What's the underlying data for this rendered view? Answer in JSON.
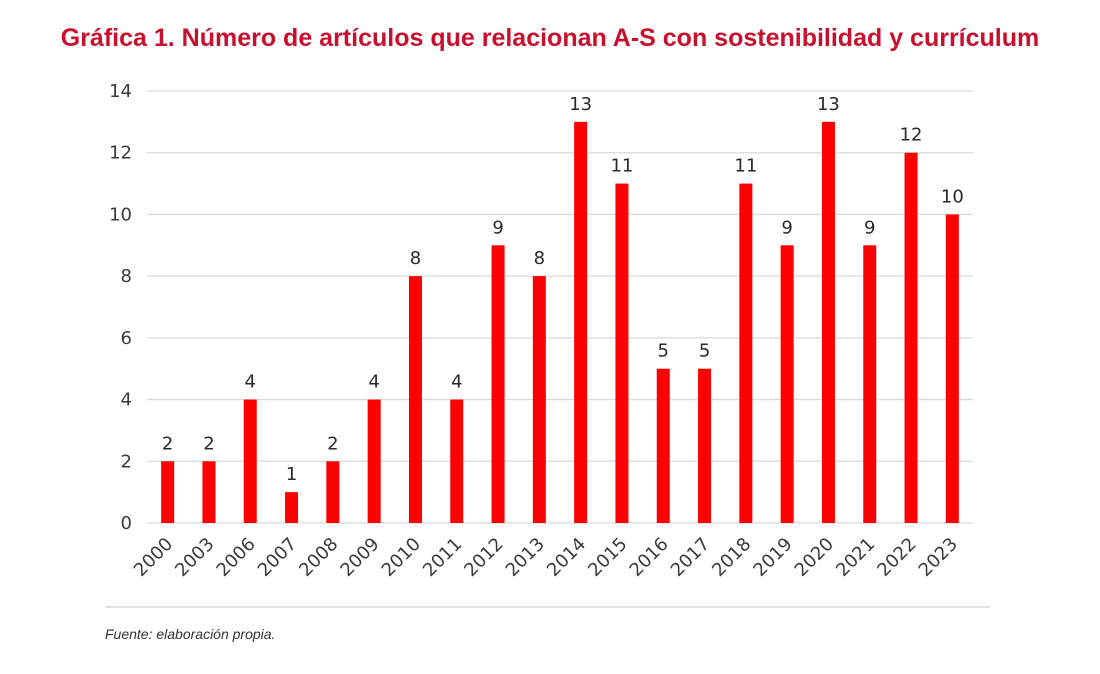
{
  "title": "Gráfica 1. Número de artículos que relacionan A-S con sostenibilidad y currículum",
  "source": "Fuente: elaboración propia.",
  "colors": {
    "bar": "#ff0000",
    "title": "#c8102e",
    "grid": "#d9d9d9",
    "text": "#3a3a3a"
  },
  "chart_data": {
    "type": "bar",
    "title": "Gráfica 1. Número de artículos que relacionan A-S con sostenibilidad y currículum",
    "xlabel": "",
    "ylabel": "",
    "categories": [
      "2000",
      "2003",
      "2006",
      "2007",
      "2008",
      "2009",
      "2010",
      "2011",
      "2012",
      "2013",
      "2014",
      "2015",
      "2016",
      "2017",
      "2018",
      "2019",
      "2020",
      "2021",
      "2022",
      "2023"
    ],
    "values": [
      2,
      2,
      4,
      1,
      2,
      4,
      8,
      4,
      9,
      8,
      13,
      11,
      5,
      5,
      11,
      9,
      13,
      9,
      12,
      10
    ],
    "ylim": [
      0,
      14
    ],
    "yticks": [
      0,
      2,
      4,
      6,
      8,
      10,
      12,
      14
    ],
    "grid": true,
    "data_labels": true,
    "legend": "none",
    "xtick_rotation": "-45deg"
  }
}
